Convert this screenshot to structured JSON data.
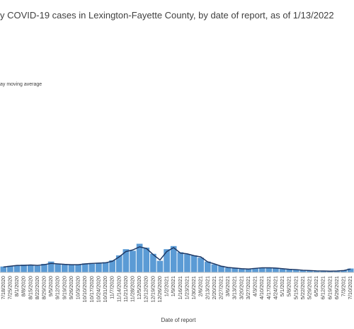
{
  "chart_data": {
    "type": "bar",
    "title": "y COVID-19 cases in Lexington-Fayette County, by date of report, as of 1/13/2022",
    "x_label": "Date of report",
    "categories": [
      "7/18/2020",
      "7/25/2020",
      "8/1/2020",
      "8/8/2020",
      "8/15/2020",
      "8/22/2020",
      "8/29/2020",
      "9/5/2020",
      "9/12/2020",
      "9/19/2020",
      "9/26/2020",
      "10/3/2020",
      "10/10/2020",
      "10/17/2020",
      "10/24/2020",
      "10/31/2020",
      "11/7/2020",
      "11/14/2020",
      "11/21/2020",
      "11/28/2020",
      "12/5/2020",
      "12/12/2020",
      "12/19/2020",
      "12/26/2020",
      "1/2/2021",
      "1/9/2021",
      "1/16/2021",
      "1/23/2021",
      "1/30/2021",
      "2/6/2021",
      "2/13/2021",
      "2/20/2021",
      "2/27/2021",
      "3/6/2021",
      "3/13/2021",
      "3/20/2021",
      "3/27/2021",
      "4/3/2021",
      "4/10/2021",
      "4/17/2021",
      "4/24/2021",
      "5/1/2021",
      "5/8/2021",
      "5/15/2021",
      "5/22/2021",
      "5/29/2021",
      "6/5/2021",
      "6/12/2021",
      "6/19/2021",
      "6/26/2021",
      "7/3/2021",
      "7/10/2021"
    ],
    "series": [
      {
        "color": "#5b9bd5",
        "values": [
          38,
          42,
          44,
          50,
          46,
          42,
          55,
          70,
          52,
          50,
          48,
          52,
          58,
          55,
          62,
          66,
          78,
          110,
          150,
          140,
          185,
          160,
          120,
          75,
          150,
          170,
          130,
          118,
          110,
          95,
          70,
          52,
          42,
          30,
          30,
          22,
          22,
          28,
          32,
          28,
          30,
          22,
          20,
          18,
          15,
          12,
          11,
          9,
          7,
          10,
          14,
          25
        ]
      },
      {
        "name": "ay moving average",
        "type": "line",
        "color": "#1f3864",
        "values": [
          35,
          40,
          45,
          45,
          48,
          45,
          50,
          58,
          55,
          52,
          50,
          50,
          55,
          58,
          60,
          62,
          72,
          100,
          135,
          145,
          165,
          155,
          115,
          80,
          135,
          160,
          125,
          120,
          108,
          100,
          68,
          55,
          40,
          32,
          28,
          24,
          22,
          26,
          30,
          30,
          28,
          24,
          20,
          18,
          14,
          12,
          10,
          9,
          8,
          9,
          12,
          22
        ]
      }
    ],
    "ylim": [
      0,
      1600
    ]
  }
}
